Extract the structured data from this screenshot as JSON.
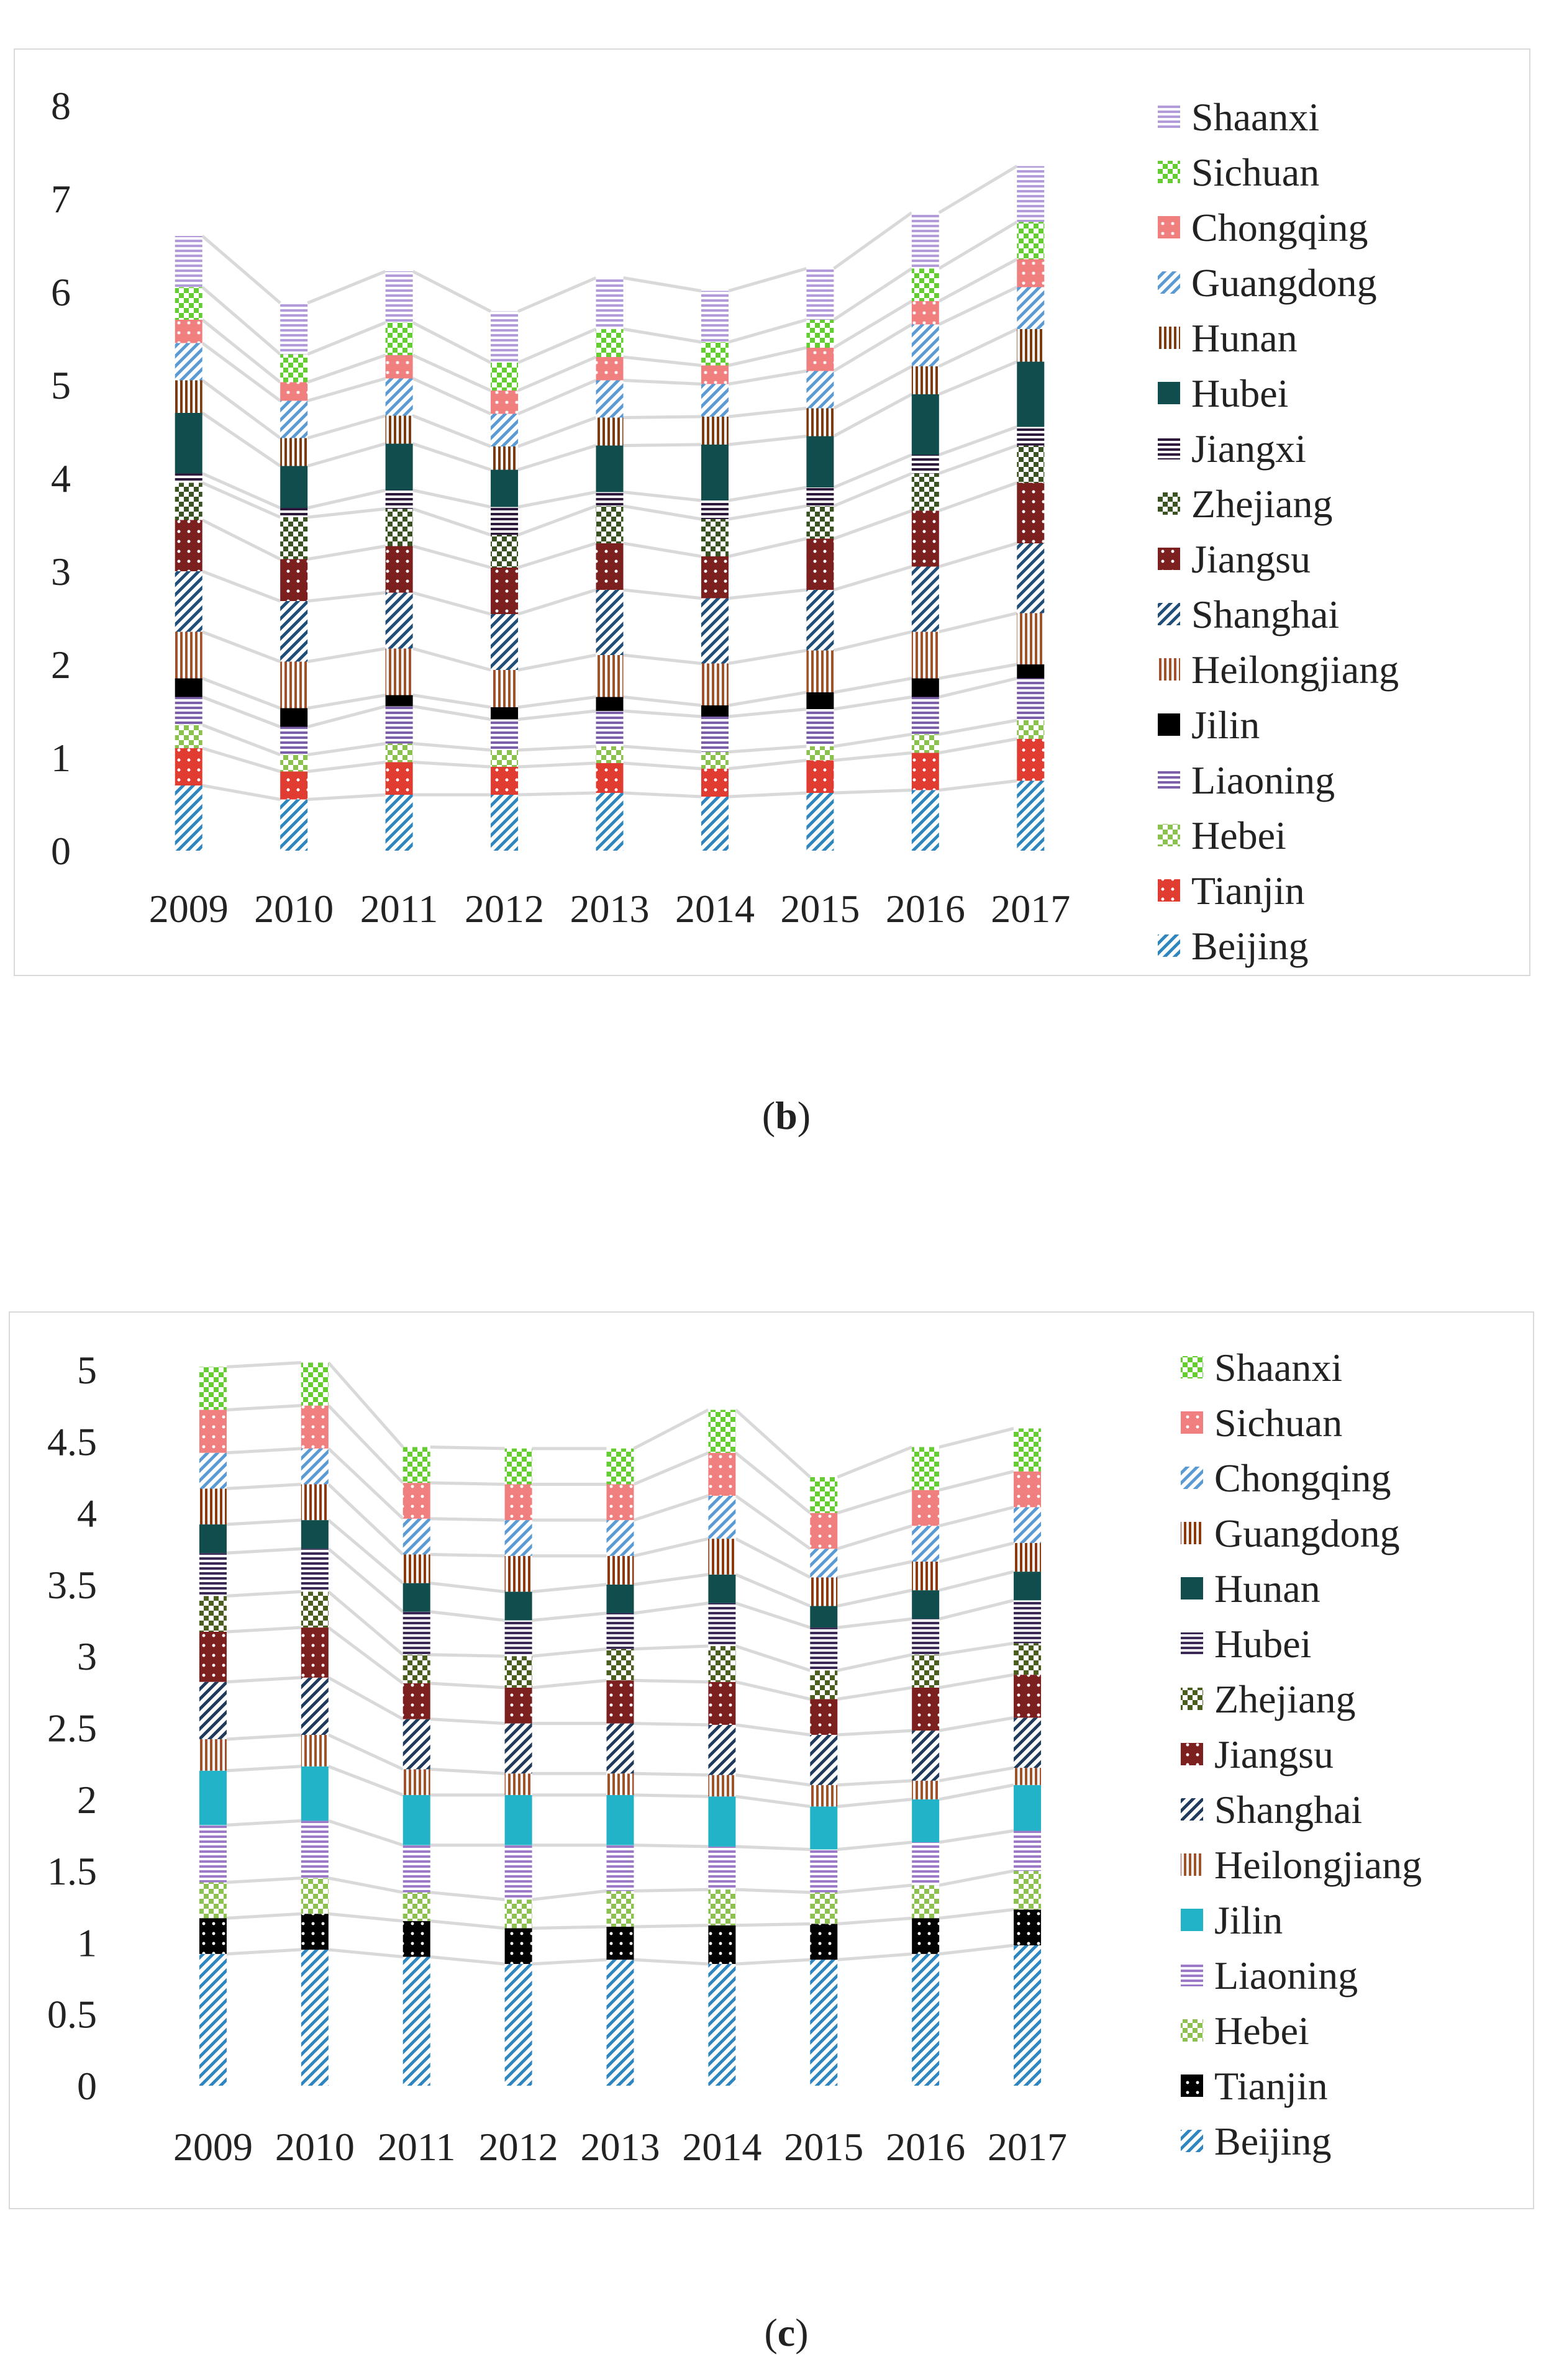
{
  "colors": {
    "Beijing": "#2e86c1",
    "Tianjin": "#e03c31",
    "Hebei": "#8cc152",
    "Liaoning": "#7b5fa8",
    "Jilin": "#000000",
    "Heilongjiang": "#a0522d",
    "Shanghai": "#1f4e79",
    "Jiangsu": "#7b1f1f",
    "Zhejiang": "#3b5323",
    "Jiangxi": "#2d1a3d",
    "Hubei": "#114d4d",
    "Hunan": "#7a3b10",
    "Guangdong": "#5b9bd5",
    "Chongqing": "#f08080",
    "Sichuan": "#66cc33",
    "Shaanxi": "#b19cd9",
    "Heilongjiang_c": "#a0522d",
    "Shanghai_c": "#1f3b5c",
    "Jiangsu_c": "#7b1f1f",
    "Zhejiang_c": "#4b5d1f",
    "Hubei_c": "#3a2a55",
    "Hunan_c": "#114d4d",
    "Guangdong_c": "#8b3a0f",
    "Chongqing_c": "#5b9bd5",
    "Sichuan_c": "#f08080",
    "Shaanxi_c": "#66cc33",
    "Liaoning_c": "#9b7bc8",
    "Jilin_c": "#22b3c9",
    "Tianjin_c": "#000000",
    "Beijing_c": "#2e86c1",
    "connector": "#d9d9d9"
  },
  "chart_data": [
    {
      "id": "b",
      "type": "bar",
      "stacked": true,
      "caption_label": "b",
      "categories": [
        "2009",
        "2010",
        "2011",
        "2012",
        "2013",
        "2014",
        "2015",
        "2016",
        "2017"
      ],
      "ylim": [
        0,
        8
      ],
      "yticks": [
        "0",
        "1",
        "2",
        "3",
        "4",
        "5",
        "6",
        "7",
        "8"
      ],
      "legend_position": "right",
      "legend_order": [
        "Shaanxi",
        "Sichuan",
        "Chongqing",
        "Guangdong",
        "Hunan",
        "Hubei",
        "Jiangxi",
        "Zhejiang",
        "Jiangsu",
        "Shanghai",
        "Heilongjiang",
        "Jilin",
        "Liaoning",
        "Hebei",
        "Tianjin",
        "Beijing"
      ],
      "series": [
        {
          "name": "Beijing",
          "values": [
            0.7,
            0.55,
            0.6,
            0.6,
            0.62,
            0.58,
            0.62,
            0.65,
            0.75
          ]
        },
        {
          "name": "Tianjin",
          "values": [
            0.4,
            0.3,
            0.35,
            0.3,
            0.32,
            0.3,
            0.35,
            0.4,
            0.45
          ]
        },
        {
          "name": "Hebei",
          "values": [
            0.25,
            0.18,
            0.2,
            0.18,
            0.18,
            0.18,
            0.15,
            0.2,
            0.2
          ]
        },
        {
          "name": "Liaoning",
          "values": [
            0.3,
            0.3,
            0.4,
            0.33,
            0.38,
            0.38,
            0.4,
            0.4,
            0.45
          ]
        },
        {
          "name": "Jilin",
          "values": [
            0.2,
            0.2,
            0.12,
            0.13,
            0.15,
            0.12,
            0.18,
            0.2,
            0.15
          ]
        },
        {
          "name": "Heilongjiang",
          "values": [
            0.5,
            0.5,
            0.5,
            0.4,
            0.45,
            0.45,
            0.45,
            0.5,
            0.55
          ]
        },
        {
          "name": "Shanghai",
          "values": [
            0.65,
            0.65,
            0.6,
            0.6,
            0.7,
            0.7,
            0.65,
            0.7,
            0.75
          ]
        },
        {
          "name": "Jiangsu",
          "values": [
            0.55,
            0.45,
            0.5,
            0.5,
            0.5,
            0.45,
            0.55,
            0.6,
            0.65
          ]
        },
        {
          "name": "Zhejiang",
          "values": [
            0.4,
            0.45,
            0.4,
            0.35,
            0.4,
            0.4,
            0.35,
            0.4,
            0.4
          ]
        },
        {
          "name": "Jiangxi",
          "values": [
            0.1,
            0.1,
            0.2,
            0.3,
            0.15,
            0.2,
            0.2,
            0.2,
            0.2
          ]
        },
        {
          "name": "Hubei",
          "values": [
            0.65,
            0.45,
            0.5,
            0.4,
            0.5,
            0.6,
            0.55,
            0.65,
            0.7
          ]
        },
        {
          "name": "Hunan",
          "values": [
            0.35,
            0.3,
            0.3,
            0.25,
            0.3,
            0.3,
            0.3,
            0.3,
            0.35
          ]
        },
        {
          "name": "Guangdong",
          "values": [
            0.4,
            0.4,
            0.4,
            0.35,
            0.4,
            0.35,
            0.4,
            0.45,
            0.45
          ]
        },
        {
          "name": "Chongqing",
          "values": [
            0.25,
            0.2,
            0.25,
            0.25,
            0.25,
            0.2,
            0.25,
            0.25,
            0.3
          ]
        },
        {
          "name": "Sichuan",
          "values": [
            0.35,
            0.3,
            0.35,
            0.3,
            0.3,
            0.25,
            0.3,
            0.35,
            0.4
          ]
        },
        {
          "name": "Shaanxi",
          "values": [
            0.55,
            0.55,
            0.55,
            0.55,
            0.55,
            0.55,
            0.55,
            0.6,
            0.6
          ]
        }
      ]
    },
    {
      "id": "c",
      "type": "bar",
      "stacked": true,
      "caption_label": "c",
      "categories": [
        "2009",
        "2010",
        "2011",
        "2012",
        "2013",
        "2014",
        "2015",
        "2016",
        "2017"
      ],
      "ylim": [
        0,
        5
      ],
      "yticks": [
        "0",
        "0.5",
        "1",
        "1.5",
        "2",
        "2.5",
        "3",
        "3.5",
        "4",
        "4.5",
        "5"
      ],
      "legend_position": "right",
      "legend_order": [
        "Shaanxi",
        "Sichuan",
        "Chongqing",
        "Guangdong",
        "Hunan",
        "Hubei",
        "Zhejiang",
        "Jiangsu",
        "Shanghai",
        "Heilongjiang",
        "Jilin",
        "Liaoning",
        "Hebei",
        "Tianjin",
        "Beijing"
      ],
      "series": [
        {
          "name": "Beijing",
          "values": [
            0.92,
            0.95,
            0.9,
            0.85,
            0.88,
            0.85,
            0.88,
            0.92,
            0.98
          ]
        },
        {
          "name": "Tianjin",
          "values": [
            0.25,
            0.25,
            0.25,
            0.25,
            0.23,
            0.27,
            0.25,
            0.25,
            0.25
          ]
        },
        {
          "name": "Hebei",
          "values": [
            0.25,
            0.25,
            0.2,
            0.2,
            0.25,
            0.25,
            0.22,
            0.23,
            0.27
          ]
        },
        {
          "name": "Liaoning",
          "values": [
            0.4,
            0.4,
            0.33,
            0.38,
            0.32,
            0.3,
            0.3,
            0.3,
            0.28
          ]
        },
        {
          "name": "Jilin",
          "values": [
            0.38,
            0.38,
            0.35,
            0.35,
            0.35,
            0.35,
            0.3,
            0.3,
            0.32
          ]
        },
        {
          "name": "Heilongjiang",
          "values": [
            0.22,
            0.22,
            0.18,
            0.15,
            0.15,
            0.15,
            0.15,
            0.13,
            0.12
          ]
        },
        {
          "name": "Shanghai",
          "values": [
            0.4,
            0.4,
            0.35,
            0.35,
            0.35,
            0.35,
            0.35,
            0.35,
            0.35
          ]
        },
        {
          "name": "Jiangsu",
          "values": [
            0.35,
            0.35,
            0.25,
            0.25,
            0.3,
            0.3,
            0.25,
            0.3,
            0.3
          ]
        },
        {
          "name": "Zhejiang",
          "values": [
            0.25,
            0.25,
            0.2,
            0.22,
            0.22,
            0.25,
            0.2,
            0.23,
            0.22
          ]
        },
        {
          "name": "Hubei",
          "values": [
            0.3,
            0.3,
            0.3,
            0.25,
            0.25,
            0.3,
            0.3,
            0.25,
            0.3
          ]
        },
        {
          "name": "Hunan",
          "values": [
            0.2,
            0.2,
            0.2,
            0.2,
            0.2,
            0.2,
            0.15,
            0.2,
            0.2
          ]
        },
        {
          "name": "Guangdong",
          "values": [
            0.25,
            0.25,
            0.2,
            0.25,
            0.2,
            0.25,
            0.2,
            0.2,
            0.2
          ]
        },
        {
          "name": "Chongqing",
          "values": [
            0.25,
            0.25,
            0.25,
            0.25,
            0.25,
            0.3,
            0.2,
            0.25,
            0.25
          ]
        },
        {
          "name": "Sichuan",
          "values": [
            0.3,
            0.3,
            0.25,
            0.25,
            0.25,
            0.3,
            0.25,
            0.25,
            0.25
          ]
        },
        {
          "name": "Shaanxi",
          "values": [
            0.3,
            0.3,
            0.25,
            0.25,
            0.25,
            0.3,
            0.25,
            0.3,
            0.3
          ]
        }
      ]
    }
  ],
  "captions": {
    "b_open": "(",
    "b_label": "b",
    "b_close": ")",
    "c_open": "(",
    "c_label": "c",
    "c_close": ")"
  }
}
